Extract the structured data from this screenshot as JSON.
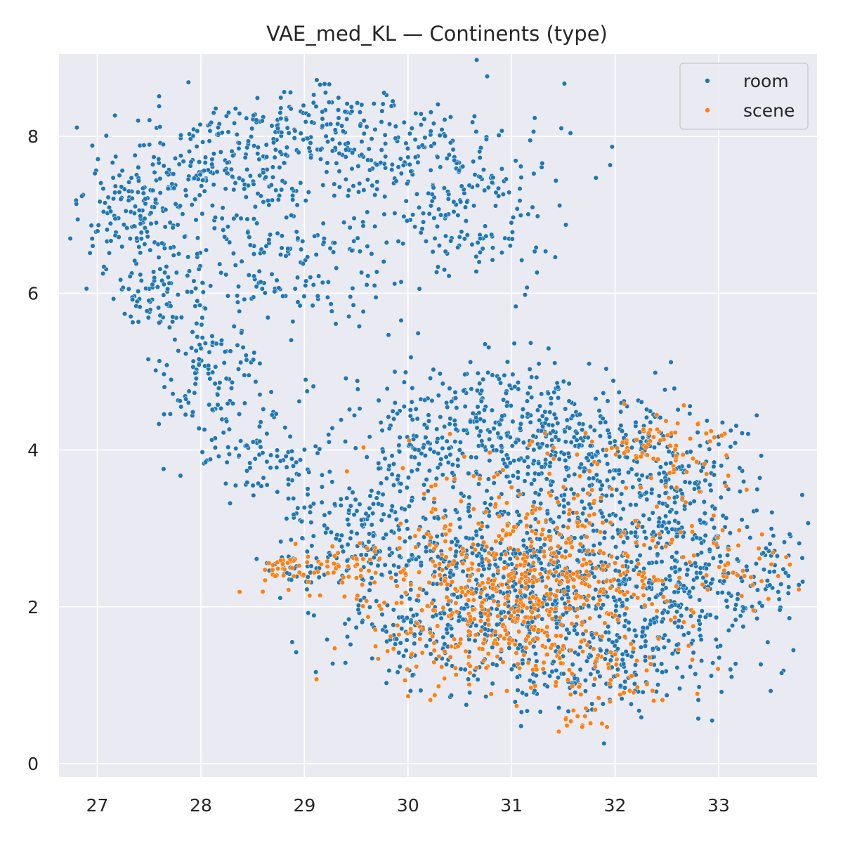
{
  "chart_data": {
    "type": "scatter",
    "title": "VAE_med_KL — Continents (type)",
    "xlabel": "",
    "ylabel": "",
    "xlim": [
      26.63,
      33.95
    ],
    "ylim": [
      -0.17,
      9.05
    ],
    "xticks": [
      27,
      28,
      29,
      30,
      31,
      32,
      33
    ],
    "yticks": [
      0,
      2,
      4,
      6,
      8
    ],
    "grid": true,
    "legend_position": "top-right",
    "series": [
      {
        "name": "room",
        "color": "#1f77b4",
        "clusters": [
          {
            "cx": 27.4,
            "cy": 7.0,
            "sx": 0.28,
            "sy": 0.45,
            "n": 170
          },
          {
            "cx": 28.2,
            "cy": 7.6,
            "sx": 0.35,
            "sy": 0.35,
            "n": 160
          },
          {
            "cx": 29.3,
            "cy": 8.0,
            "sx": 0.55,
            "sy": 0.35,
            "n": 210
          },
          {
            "cx": 30.4,
            "cy": 7.5,
            "sx": 0.5,
            "sy": 0.4,
            "n": 160
          },
          {
            "cx": 30.6,
            "cy": 6.6,
            "sx": 0.4,
            "sy": 0.25,
            "n": 60
          },
          {
            "cx": 28.6,
            "cy": 6.3,
            "sx": 0.55,
            "sy": 0.4,
            "n": 120
          },
          {
            "cx": 29.3,
            "cy": 6.6,
            "sx": 0.5,
            "sy": 0.5,
            "n": 60
          },
          {
            "cx": 27.6,
            "cy": 6.0,
            "sx": 0.2,
            "sy": 0.3,
            "n": 60
          },
          {
            "cx": 28.1,
            "cy": 5.0,
            "sx": 0.25,
            "sy": 0.45,
            "n": 110
          },
          {
            "cx": 28.5,
            "cy": 4.0,
            "sx": 0.35,
            "sy": 0.35,
            "n": 70
          },
          {
            "cx": 29.2,
            "cy": 3.2,
            "sx": 0.35,
            "sy": 0.45,
            "n": 60
          },
          {
            "cx": 30.6,
            "cy": 4.2,
            "sx": 0.7,
            "sy": 0.55,
            "n": 330
          },
          {
            "cx": 31.6,
            "cy": 4.1,
            "sx": 0.6,
            "sy": 0.5,
            "n": 240
          },
          {
            "cx": 32.5,
            "cy": 3.8,
            "sx": 0.35,
            "sy": 0.35,
            "n": 120
          },
          {
            "cx": 31.2,
            "cy": 2.4,
            "sx": 0.7,
            "sy": 0.5,
            "n": 560
          },
          {
            "cx": 32.3,
            "cy": 2.5,
            "sx": 0.6,
            "sy": 0.6,
            "n": 260
          },
          {
            "cx": 33.1,
            "cy": 2.5,
            "sx": 0.4,
            "sy": 0.5,
            "n": 140
          },
          {
            "cx": 30.2,
            "cy": 1.7,
            "sx": 0.55,
            "sy": 0.35,
            "n": 150
          },
          {
            "cx": 32.2,
            "cy": 1.3,
            "sx": 0.5,
            "sy": 0.35,
            "n": 120
          },
          {
            "cx": 31.4,
            "cy": 1.1,
            "sx": 0.45,
            "sy": 0.3,
            "n": 90
          },
          {
            "cx": 29.8,
            "cy": 2.9,
            "sx": 0.45,
            "sy": 0.4,
            "n": 130
          },
          {
            "cx": 28.9,
            "cy": 2.5,
            "sx": 0.15,
            "sy": 0.1,
            "n": 25
          }
        ]
      },
      {
        "name": "scene",
        "color": "#ff7f0e",
        "clusters": [
          {
            "cx": 31.2,
            "cy": 2.3,
            "sx": 0.55,
            "sy": 0.45,
            "n": 330
          },
          {
            "cx": 30.5,
            "cy": 1.8,
            "sx": 0.5,
            "sy": 0.45,
            "n": 150
          },
          {
            "cx": 31.8,
            "cy": 1.2,
            "sx": 0.4,
            "sy": 0.3,
            "n": 70
          },
          {
            "cx": 32.5,
            "cy": 4.0,
            "sx": 0.35,
            "sy": 0.3,
            "n": 80
          },
          {
            "cx": 32.2,
            "cy": 2.5,
            "sx": 0.5,
            "sy": 0.5,
            "n": 80
          },
          {
            "cx": 33.3,
            "cy": 2.5,
            "sx": 0.25,
            "sy": 0.2,
            "n": 30
          },
          {
            "cx": 29.3,
            "cy": 2.5,
            "sx": 0.4,
            "sy": 0.2,
            "n": 60
          },
          {
            "cx": 28.8,
            "cy": 2.5,
            "sx": 0.1,
            "sy": 0.07,
            "n": 20
          },
          {
            "cx": 30.9,
            "cy": 3.2,
            "sx": 0.6,
            "sy": 0.5,
            "n": 90
          },
          {
            "cx": 31.7,
            "cy": 0.6,
            "sx": 0.15,
            "sy": 0.1,
            "n": 15
          }
        ]
      }
    ]
  }
}
